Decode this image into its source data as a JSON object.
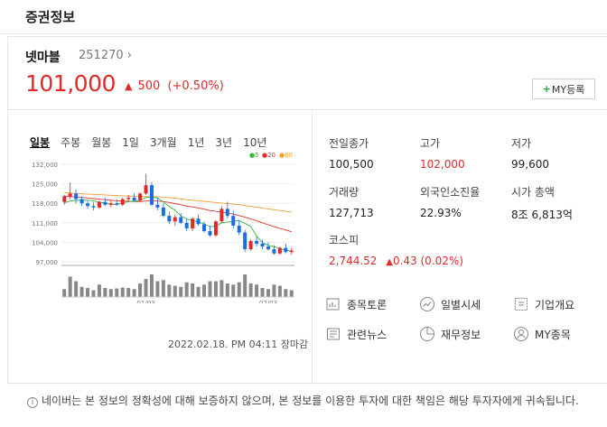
{
  "header": {
    "title": "증권정보"
  },
  "stock": {
    "name": "넷마블",
    "code": "251270",
    "price": "101,000",
    "change_amount": "500",
    "change_percent": "(+0.50%)",
    "my_button": "MY등록"
  },
  "periods": [
    "일봉",
    "주봉",
    "월봉",
    "1일",
    "3개월",
    "1년",
    "3년",
    "10년"
  ],
  "active_period": "일봉",
  "legend": [
    {
      "label": "5",
      "color": "#2db83d"
    },
    {
      "label": "20",
      "color": "#e0302a"
    },
    {
      "label": "60",
      "color": "#f0a030"
    }
  ],
  "timestamp": "2022.02.18. PM 04:11 장마감",
  "info": {
    "prev_close": {
      "label": "전일종가",
      "value": "100,500"
    },
    "high": {
      "label": "고가",
      "value": "102,000"
    },
    "low": {
      "label": "저가",
      "value": "99,600"
    },
    "volume": {
      "label": "거래량",
      "value": "127,713"
    },
    "foreign": {
      "label": "외국인소진율",
      "value": "22.93%"
    },
    "market_cap": {
      "label": "시가 총액",
      "value": "8조 6,813억"
    },
    "kospi": {
      "label": "코스피",
      "value": "2,744.52",
      "change": "0.43 (0.02%)"
    }
  },
  "menu": {
    "discussion": "종목토론",
    "daily": "일별시세",
    "company": "기업개요",
    "news": "관련뉴스",
    "finance": "재무정보",
    "my_stocks": "MY종목"
  },
  "notice": "네이버는 본 정보의 정확성에 대해 보증하지 않으며, 본 정보를 이용한 투자에 대한 책임은 해당 투자자에게 귀속됩니다.",
  "colors": {
    "up": "#e02a2a",
    "down": "#1a6ee0",
    "ma5": "#2db83d",
    "ma20": "#e0302a",
    "ma60": "#f0a030"
  },
  "chart_data": {
    "type": "candlestick",
    "y_ticks": [
      "132,000",
      "125,000",
      "118,000",
      "111,000",
      "104,000",
      "97,000"
    ],
    "ylim": [
      97000,
      132000
    ],
    "x_ticks": [
      {
        "label": "01/03",
        "index": 14
      },
      {
        "label": "02/03",
        "index": 35
      }
    ],
    "candles": [
      {
        "o": 118500,
        "h": 121000,
        "l": 117500,
        "c": 120500
      },
      {
        "o": 120500,
        "h": 125500,
        "l": 119500,
        "c": 121500
      },
      {
        "o": 121500,
        "h": 123000,
        "l": 118000,
        "c": 119500
      },
      {
        "o": 119500,
        "h": 120500,
        "l": 117000,
        "c": 118000
      },
      {
        "o": 118000,
        "h": 119000,
        "l": 116000,
        "c": 117000
      },
      {
        "o": 117000,
        "h": 118500,
        "l": 115500,
        "c": 116500
      },
      {
        "o": 116500,
        "h": 119000,
        "l": 116000,
        "c": 118500
      },
      {
        "o": 118500,
        "h": 120000,
        "l": 117000,
        "c": 117500
      },
      {
        "o": 117500,
        "h": 119000,
        "l": 116500,
        "c": 118000
      },
      {
        "o": 118000,
        "h": 119500,
        "l": 117000,
        "c": 117500
      },
      {
        "o": 117500,
        "h": 120000,
        "l": 117000,
        "c": 119500
      },
      {
        "o": 119500,
        "h": 121000,
        "l": 118500,
        "c": 120000
      },
      {
        "o": 120000,
        "h": 121500,
        "l": 118500,
        "c": 119000
      },
      {
        "o": 119000,
        "h": 122000,
        "l": 118500,
        "c": 121500
      },
      {
        "o": 121500,
        "h": 128500,
        "l": 121000,
        "c": 124500
      },
      {
        "o": 124500,
        "h": 125500,
        "l": 117000,
        "c": 117500
      },
      {
        "o": 117500,
        "h": 120000,
        "l": 115500,
        "c": 116500
      },
      {
        "o": 116500,
        "h": 118000,
        "l": 113000,
        "c": 113500
      },
      {
        "o": 113500,
        "h": 115000,
        "l": 110500,
        "c": 111500
      },
      {
        "o": 111500,
        "h": 114000,
        "l": 110000,
        "c": 113000
      },
      {
        "o": 113000,
        "h": 114500,
        "l": 110500,
        "c": 111000
      },
      {
        "o": 111000,
        "h": 112500,
        "l": 108000,
        "c": 109000
      },
      {
        "o": 109000,
        "h": 113000,
        "l": 108000,
        "c": 112500
      },
      {
        "o": 112500,
        "h": 114000,
        "l": 110000,
        "c": 110500
      },
      {
        "o": 110500,
        "h": 111500,
        "l": 107500,
        "c": 108000
      },
      {
        "o": 108000,
        "h": 110000,
        "l": 106000,
        "c": 106500
      },
      {
        "o": 106500,
        "h": 112000,
        "l": 106000,
        "c": 111500
      },
      {
        "o": 111500,
        "h": 117000,
        "l": 111000,
        "c": 116000
      },
      {
        "o": 116000,
        "h": 118500,
        "l": 112500,
        "c": 113500
      },
      {
        "o": 113500,
        "h": 115500,
        "l": 109000,
        "c": 110000
      },
      {
        "o": 110000,
        "h": 112000,
        "l": 106500,
        "c": 107500
      },
      {
        "o": 107500,
        "h": 108500,
        "l": 100500,
        "c": 101500
      },
      {
        "o": 101500,
        "h": 105000,
        "l": 101000,
        "c": 104500
      },
      {
        "o": 104500,
        "h": 106000,
        "l": 102500,
        "c": 103500
      },
      {
        "o": 103500,
        "h": 105000,
        "l": 101500,
        "c": 102500
      },
      {
        "o": 102500,
        "h": 104000,
        "l": 101000,
        "c": 101500
      },
      {
        "o": 101500,
        "h": 103000,
        "l": 99500,
        "c": 100000
      },
      {
        "o": 100000,
        "h": 102500,
        "l": 99500,
        "c": 102000
      },
      {
        "o": 102000,
        "h": 103500,
        "l": 100000,
        "c": 100500
      },
      {
        "o": 100500,
        "h": 102000,
        "l": 99600,
        "c": 101000
      }
    ],
    "ma5": [
      118200,
      118800,
      119000,
      119200,
      119100,
      118900,
      118400,
      118100,
      117600,
      117600,
      118100,
      118600,
      118700,
      119000,
      120100,
      120100,
      119900,
      118500,
      116900,
      115500,
      113500,
      112400,
      111800,
      111300,
      110600,
      109600,
      109800,
      111000,
      111300,
      111500,
      111800,
      110800,
      109700,
      106200,
      103900,
      102900,
      102400,
      101800,
      101100,
      100900
    ],
    "ma20": [
      120500,
      120400,
      120300,
      120100,
      119900,
      119700,
      119500,
      119300,
      119100,
      118900,
      118800,
      118700,
      118600,
      118600,
      118800,
      118900,
      118800,
      118600,
      118300,
      117900,
      117500,
      117000,
      116700,
      116300,
      115900,
      115400,
      115100,
      114900,
      114500,
      114100,
      113600,
      113000,
      112400,
      111700,
      111000,
      110300,
      109600,
      109000,
      108400,
      107800
    ],
    "ma60": [
      121800,
      121700,
      121500,
      121400,
      121300,
      121200,
      121100,
      121000,
      120900,
      120800,
      120700,
      120600,
      120500,
      120400,
      120400,
      120400,
      120300,
      120200,
      120000,
      119800,
      119600,
      119300,
      119100,
      118900,
      118700,
      118500,
      118300,
      118100,
      117900,
      117700,
      117500,
      117200,
      116900,
      116600,
      116300,
      116000,
      115700,
      115400,
      115100,
      114800
    ],
    "volume": [
      35,
      90,
      70,
      45,
      40,
      30,
      55,
      40,
      35,
      38,
      42,
      40,
      35,
      60,
      80,
      100,
      70,
      75,
      55,
      50,
      45,
      65,
      60,
      45,
      55,
      70,
      70,
      75,
      60,
      55,
      65,
      100,
      60,
      55,
      40,
      35,
      55,
      50,
      35,
      30
    ]
  }
}
